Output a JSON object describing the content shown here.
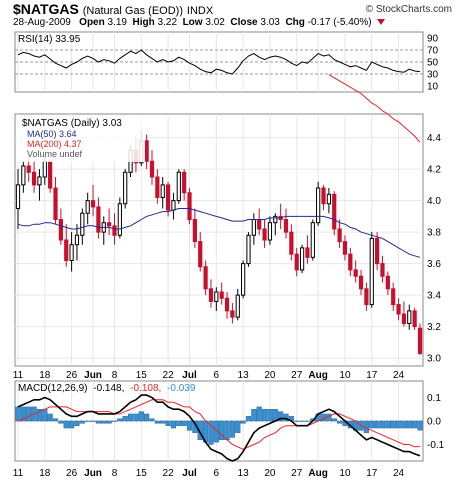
{
  "header": {
    "symbol": "$NATGAS",
    "name": "(Natural Gas (EOD))",
    "exchange": "INDX",
    "brand": "© StockCharts.com",
    "date": "28-Aug-2009",
    "open_label": "Open",
    "open": "3.19",
    "high_label": "High",
    "high": "3.22",
    "low_label": "Low",
    "low": "3.02",
    "close_label": "Close",
    "close": "3.03",
    "chg_label": "Chg",
    "chg": "-0.17 (-5.40%)"
  },
  "colors": {
    "up": "#000000",
    "down": "#c8102e",
    "ma50": "#1f2a8c",
    "ma200": "#e8232a",
    "volume": "#3a8fd0",
    "signal": "#e8232a",
    "macd": "#000000"
  },
  "rsi_panel": {
    "legend": "RSI(14) 33.95",
    "yticks": [
      "90",
      "70",
      "50",
      "30",
      "10"
    ]
  },
  "price_panel": {
    "legend_main": "$NATGAS (Daily) 3.03",
    "legend_ma50": "MA(50) 3.64",
    "legend_ma200": "MA(200) 4.37",
    "legend_vol": "Volume undef",
    "yticks": [
      "4.4",
      "4.2",
      "4.0",
      "3.8",
      "3.6",
      "3.4",
      "3.2",
      "3.0"
    ]
  },
  "macd_panel": {
    "legend_a": "MACD(12,26,9)",
    "legend_b": "-0.148,",
    "legend_c": "-0.108,",
    "legend_d": "-0.039",
    "yticks": [
      "0.1",
      "0.0",
      "-0.1"
    ]
  },
  "xaxis": {
    "labels": [
      "11",
      "18",
      "26",
      "Jun",
      "8",
      "15",
      "22",
      "Jul",
      "6",
      "13",
      "20",
      "27",
      "Aug",
      "10",
      "17",
      "24"
    ]
  },
  "chart_data": {
    "type": "candlestick",
    "title": "$NATGAS (Natural Gas (EOD)) INDX",
    "ylim": [
      2.95,
      4.55
    ],
    "candles": [
      [
        3.95,
        4.2,
        3.82,
        4.1
      ],
      [
        4.1,
        4.25,
        4.05,
        4.22
      ],
      [
        4.22,
        4.28,
        4.12,
        4.18
      ],
      [
        4.18,
        4.26,
        4.05,
        4.1
      ],
      [
        4.1,
        4.2,
        4.0,
        4.15
      ],
      [
        4.15,
        4.28,
        4.1,
        4.25
      ],
      [
        4.25,
        4.26,
        4.05,
        4.08
      ],
      [
        4.08,
        4.15,
        3.85,
        3.88
      ],
      [
        3.88,
        3.95,
        3.72,
        3.75
      ],
      [
        3.75,
        3.85,
        3.58,
        3.62
      ],
      [
        3.62,
        3.8,
        3.55,
        3.72
      ],
      [
        3.72,
        3.85,
        3.62,
        3.78
      ],
      [
        3.78,
        3.95,
        3.72,
        3.92
      ],
      [
        3.92,
        4.05,
        3.85,
        4.0
      ],
      [
        4.0,
        4.1,
        3.9,
        3.96
      ],
      [
        3.96,
        4.02,
        3.76,
        3.8
      ],
      [
        3.8,
        3.9,
        3.72,
        3.86
      ],
      [
        3.86,
        3.95,
        3.78,
        3.84
      ],
      [
        3.84,
        3.92,
        3.72,
        3.78
      ],
      [
        3.78,
        4.02,
        3.76,
        3.98
      ],
      [
        3.98,
        4.2,
        3.95,
        4.18
      ],
      [
        4.18,
        4.35,
        4.15,
        4.32
      ],
      [
        4.32,
        4.4,
        4.18,
        4.24
      ],
      [
        4.24,
        4.45,
        4.22,
        4.38
      ],
      [
        4.38,
        4.42,
        4.2,
        4.25
      ],
      [
        4.25,
        4.32,
        4.1,
        4.15
      ],
      [
        4.15,
        4.2,
        3.98,
        4.02
      ],
      [
        4.02,
        4.15,
        3.95,
        4.1
      ],
      [
        4.1,
        4.12,
        3.9,
        3.94
      ],
      [
        3.94,
        4.05,
        3.88,
        4.0
      ],
      [
        4.0,
        4.2,
        3.98,
        4.18
      ],
      [
        4.18,
        4.2,
        4.0,
        4.05
      ],
      [
        4.05,
        4.08,
        3.85,
        3.88
      ],
      [
        3.88,
        3.95,
        3.7,
        3.74
      ],
      [
        3.74,
        3.8,
        3.55,
        3.58
      ],
      [
        3.58,
        3.62,
        3.4,
        3.44
      ],
      [
        3.44,
        3.5,
        3.32,
        3.36
      ],
      [
        3.36,
        3.45,
        3.3,
        3.42
      ],
      [
        3.42,
        3.48,
        3.34,
        3.38
      ],
      [
        3.38,
        3.42,
        3.25,
        3.3
      ],
      [
        3.3,
        3.35,
        3.22,
        3.26
      ],
      [
        3.26,
        3.44,
        3.24,
        3.4
      ],
      [
        3.4,
        3.62,
        3.38,
        3.6
      ],
      [
        3.6,
        3.8,
        3.58,
        3.78
      ],
      [
        3.78,
        3.92,
        3.72,
        3.88
      ],
      [
        3.88,
        3.95,
        3.78,
        3.82
      ],
      [
        3.82,
        3.88,
        3.7,
        3.75
      ],
      [
        3.75,
        3.9,
        3.72,
        3.86
      ],
      [
        3.86,
        3.92,
        3.78,
        3.9
      ],
      [
        3.9,
        3.98,
        3.82,
        3.88
      ],
      [
        3.88,
        3.95,
        3.76,
        3.8
      ],
      [
        3.8,
        3.85,
        3.62,
        3.66
      ],
      [
        3.66,
        3.7,
        3.52,
        3.56
      ],
      [
        3.56,
        3.72,
        3.54,
        3.7
      ],
      [
        3.7,
        3.78,
        3.6,
        3.64
      ],
      [
        3.64,
        3.88,
        3.62,
        3.86
      ],
      [
        3.86,
        4.12,
        3.84,
        4.08
      ],
      [
        4.08,
        4.1,
        3.94,
        3.98
      ],
      [
        3.98,
        4.08,
        3.92,
        4.04
      ],
      [
        4.04,
        4.06,
        3.78,
        3.82
      ],
      [
        3.82,
        3.88,
        3.7,
        3.74
      ],
      [
        3.74,
        3.78,
        3.62,
        3.66
      ],
      [
        3.66,
        3.7,
        3.52,
        3.56
      ],
      [
        3.56,
        3.62,
        3.48,
        3.52
      ],
      [
        3.52,
        3.56,
        3.4,
        3.44
      ],
      [
        3.44,
        3.48,
        3.3,
        3.34
      ],
      [
        3.34,
        3.8,
        3.32,
        3.76
      ],
      [
        3.76,
        3.8,
        3.56,
        3.6
      ],
      [
        3.6,
        3.65,
        3.48,
        3.52
      ],
      [
        3.52,
        3.55,
        3.4,
        3.44
      ],
      [
        3.44,
        3.48,
        3.3,
        3.34
      ],
      [
        3.34,
        3.38,
        3.24,
        3.28
      ],
      [
        3.28,
        3.36,
        3.2,
        3.22
      ],
      [
        3.22,
        3.34,
        3.18,
        3.3
      ],
      [
        3.3,
        3.32,
        3.18,
        3.2
      ],
      [
        3.19,
        3.22,
        3.02,
        3.03
      ]
    ],
    "ma50": [
      3.85,
      3.84,
      3.84,
      3.85,
      3.85,
      3.86,
      3.86,
      3.85,
      3.84,
      3.83,
      3.82,
      3.82,
      3.83,
      3.84,
      3.84,
      3.83,
      3.83,
      3.83,
      3.82,
      3.82,
      3.83,
      3.84,
      3.86,
      3.88,
      3.9,
      3.91,
      3.92,
      3.93,
      3.93,
      3.94,
      3.95,
      3.95,
      3.95,
      3.94,
      3.93,
      3.92,
      3.91,
      3.9,
      3.89,
      3.88,
      3.87,
      3.87,
      3.87,
      3.88,
      3.88,
      3.88,
      3.88,
      3.89,
      3.89,
      3.89,
      3.9,
      3.9,
      3.9,
      3.9,
      3.9,
      3.9,
      3.9,
      3.9,
      3.89,
      3.88,
      3.86,
      3.85,
      3.83,
      3.82,
      3.8,
      3.79,
      3.78,
      3.77,
      3.76,
      3.74,
      3.72,
      3.7,
      3.68,
      3.66,
      3.65,
      3.64
    ],
    "ma200": [
      null,
      null,
      null,
      null,
      null,
      null,
      null,
      null,
      null,
      null,
      null,
      null,
      null,
      null,
      null,
      null,
      null,
      null,
      null,
      null,
      null,
      null,
      null,
      null,
      null,
      null,
      null,
      null,
      null,
      null,
      null,
      null,
      null,
      null,
      null,
      null,
      null,
      null,
      null,
      null,
      null,
      null,
      null,
      null,
      null,
      null,
      null,
      null,
      null,
      null,
      null,
      null,
      null,
      null,
      null,
      null,
      null,
      null,
      4.8,
      4.78,
      4.76,
      4.74,
      4.72,
      4.7,
      4.68,
      4.65,
      4.62,
      4.6,
      4.57,
      4.55,
      4.52,
      4.5,
      4.47,
      4.44,
      4.41,
      4.37
    ],
    "rsi": [
      62,
      66,
      64,
      60,
      58,
      62,
      55,
      48,
      44,
      40,
      46,
      50,
      56,
      60,
      56,
      50,
      54,
      52,
      48,
      56,
      62,
      68,
      64,
      70,
      62,
      56,
      50,
      54,
      50,
      52,
      58,
      54,
      48,
      44,
      38,
      34,
      32,
      38,
      36,
      32,
      30,
      40,
      52,
      60,
      64,
      58,
      54,
      58,
      60,
      58,
      54,
      48,
      44,
      50,
      48,
      56,
      64,
      60,
      62,
      54,
      50,
      46,
      42,
      44,
      40,
      36,
      50,
      46,
      42,
      40,
      36,
      34,
      33,
      38,
      35,
      34
    ],
    "macd": [
      0.06,
      0.07,
      0.08,
      0.09,
      0.09,
      0.1,
      0.09,
      0.07,
      0.05,
      0.03,
      0.02,
      0.02,
      0.03,
      0.04,
      0.04,
      0.03,
      0.03,
      0.03,
      0.03,
      0.04,
      0.06,
      0.08,
      0.09,
      0.11,
      0.11,
      0.1,
      0.08,
      0.08,
      0.06,
      0.05,
      0.05,
      0.04,
      0.02,
      -0.01,
      -0.05,
      -0.09,
      -0.12,
      -0.13,
      -0.14,
      -0.16,
      -0.17,
      -0.16,
      -0.13,
      -0.09,
      -0.05,
      -0.03,
      -0.02,
      -0.01,
      0.0,
      0.01,
      0.01,
      0.0,
      -0.02,
      -0.02,
      -0.02,
      0.0,
      0.03,
      0.04,
      0.05,
      0.04,
      0.02,
      0.0,
      -0.02,
      -0.04,
      -0.06,
      -0.08,
      -0.07,
      -0.08,
      -0.09,
      -0.1,
      -0.11,
      -0.12,
      -0.13,
      -0.13,
      -0.14,
      -0.148
    ],
    "signal": [
      0.0,
      0.01,
      0.02,
      0.03,
      0.04,
      0.05,
      0.06,
      0.06,
      0.06,
      0.06,
      0.05,
      0.04,
      0.04,
      0.04,
      0.04,
      0.04,
      0.04,
      0.04,
      0.03,
      0.03,
      0.04,
      0.05,
      0.06,
      0.07,
      0.08,
      0.09,
      0.09,
      0.09,
      0.08,
      0.08,
      0.07,
      0.06,
      0.06,
      0.04,
      0.03,
      0.0,
      -0.02,
      -0.04,
      -0.06,
      -0.08,
      -0.1,
      -0.11,
      -0.12,
      -0.11,
      -0.1,
      -0.09,
      -0.07,
      -0.06,
      -0.05,
      -0.03,
      -0.02,
      -0.02,
      -0.02,
      -0.02,
      -0.02,
      -0.01,
      0.0,
      0.01,
      0.02,
      0.03,
      0.03,
      0.02,
      0.01,
      0.0,
      -0.02,
      -0.03,
      -0.04,
      -0.05,
      -0.06,
      -0.07,
      -0.08,
      -0.09,
      -0.1,
      -0.1,
      -0.11,
      -0.108
    ],
    "histogram": [
      0.06,
      0.06,
      0.06,
      0.06,
      0.05,
      0.05,
      0.03,
      0.01,
      -0.01,
      -0.03,
      -0.03,
      -0.02,
      -0.01,
      0.0,
      0.0,
      -0.01,
      -0.01,
      -0.01,
      0.0,
      0.01,
      0.02,
      0.03,
      0.03,
      0.04,
      0.03,
      0.01,
      -0.01,
      -0.01,
      -0.02,
      -0.03,
      -0.02,
      -0.02,
      -0.04,
      -0.05,
      -0.08,
      -0.09,
      -0.1,
      -0.09,
      -0.08,
      -0.08,
      -0.07,
      -0.05,
      -0.01,
      0.02,
      0.05,
      0.06,
      0.05,
      0.05,
      0.05,
      0.04,
      0.03,
      0.02,
      0.0,
      0.0,
      0.0,
      0.01,
      0.03,
      0.03,
      0.03,
      0.01,
      -0.01,
      -0.02,
      -0.03,
      -0.04,
      -0.04,
      -0.05,
      -0.03,
      -0.03,
      -0.03,
      -0.03,
      -0.03,
      -0.03,
      -0.03,
      -0.03,
      -0.03,
      -0.039
    ],
    "rsi_range": [
      0,
      100
    ],
    "macd_range": [
      -0.17,
      0.17
    ],
    "xtick_index": [
      0,
      5,
      10,
      14,
      18,
      23,
      28,
      32,
      37,
      42,
      47,
      52,
      56,
      61,
      66,
      71
    ]
  }
}
